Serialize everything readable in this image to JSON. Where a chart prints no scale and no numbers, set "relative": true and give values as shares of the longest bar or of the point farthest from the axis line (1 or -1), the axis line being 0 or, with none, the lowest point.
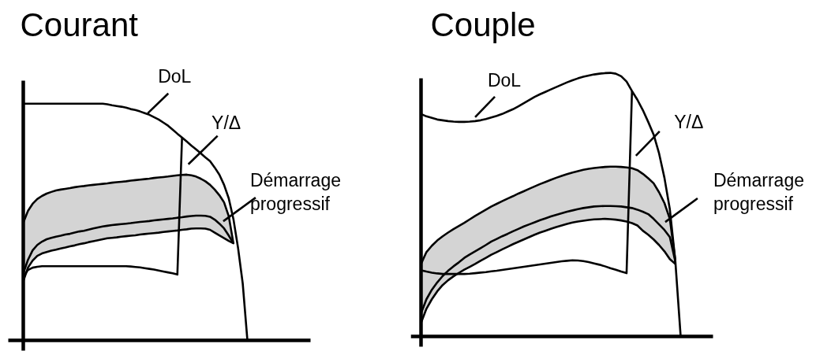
{
  "chart_data": [
    {
      "type": "line",
      "title": "Courant",
      "relative": true,
      "line_style": "solid",
      "categories": [
        null,
        null,
        null,
        null,
        null,
        null,
        null,
        null,
        null,
        null,
        null,
        null,
        null,
        null,
        null,
        null,
        null,
        null,
        null,
        null,
        null,
        null,
        null,
        null,
        null,
        null,
        null,
        null,
        null,
        null,
        null,
        null,
        null,
        null,
        null,
        null,
        null,
        null,
        null,
        null,
        null,
        null,
        null,
        null,
        null,
        null,
        null,
        null,
        null
      ],
      "series": [
        {
          "name": "DoL",
          "color": "#000000",
          "values": [
            1.0,
            1.0,
            1.0,
            1.0,
            1.0,
            1.0,
            1.0,
            1.0,
            1.0,
            1.0,
            1.0,
            1.0,
            1.0,
            1.0,
            1.0,
            1.0,
            1.0,
            1.0,
            0.997,
            0.993,
            0.99,
            0.987,
            0.983,
            0.977,
            0.973,
            0.967,
            0.96,
            0.953,
            0.943,
            0.933,
            0.92,
            0.907,
            0.89,
            0.873,
            0.857,
            0.84,
            0.823,
            0.807,
            0.79,
            0.773,
            0.757,
            0.73,
            0.7,
            0.657,
            0.6,
            0.513,
            0.39,
            0.24,
            0
          ]
        },
        {
          "name": "Y/Δ",
          "color": "#000000",
          "values": [
            0.267,
            0.297,
            0.307,
            0.311,
            0.313,
            0.313,
            0.313,
            0.313,
            0.313,
            0.313,
            0.313,
            0.313,
            0.313,
            0.313,
            0.313,
            0.313,
            0.313,
            0.313,
            0.313,
            0.313,
            0.313,
            0.313,
            0.313,
            0.312,
            0.31,
            0.308,
            0.305,
            0.302,
            0.299,
            0.295,
            0.291,
            0.287,
            0.283,
            0.278,
            0.857,
            null,
            null,
            null,
            null,
            null,
            null,
            null,
            null,
            null,
            null,
            null,
            null,
            null,
            null
          ]
        },
        {
          "name": "Démarrage progressif",
          "color": "#000000",
          "values": [
            0.283,
            0.34,
            0.38,
            0.403,
            0.417,
            0.427,
            0.433,
            0.438,
            0.442,
            0.447,
            0.45,
            0.455,
            0.46,
            0.463,
            0.468,
            0.473,
            0.477,
            0.481,
            0.484,
            0.487,
            0.489,
            0.491,
            0.493,
            0.495,
            0.498,
            0.5,
            0.502,
            0.504,
            0.507,
            0.509,
            0.511,
            0.513,
            0.515,
            0.518,
            0.52,
            0.523,
            0.525,
            0.527,
            0.527,
            0.526,
            0.522,
            0.51,
            0.493,
            0.473,
            0.443,
            0.41,
            null,
            null,
            null
          ],
          "lower": [
            0.25,
            0.307,
            0.337,
            0.357,
            0.367,
            0.373,
            0.379,
            0.383,
            0.388,
            0.392,
            0.397,
            0.401,
            0.406,
            0.41,
            0.415,
            0.419,
            0.423,
            0.427,
            0.431,
            0.433,
            0.435,
            0.438,
            0.44,
            0.442,
            0.444,
            0.447,
            0.449,
            0.451,
            0.453,
            0.455,
            0.458,
            0.46,
            0.462,
            0.464,
            0.467,
            0.469,
            0.472,
            0.473,
            0.473,
            0.472,
            0.467,
            0.455,
            0.443,
            0.432,
            0.42,
            0.41,
            null,
            null,
            null
          ],
          "upper": [
            0.497,
            0.547,
            0.577,
            0.597,
            0.61,
            0.62,
            0.627,
            0.633,
            0.637,
            0.64,
            0.643,
            0.647,
            0.65,
            0.652,
            0.655,
            0.657,
            0.659,
            0.661,
            0.663,
            0.666,
            0.668,
            0.67,
            0.672,
            0.675,
            0.677,
            0.679,
            0.681,
            0.683,
            0.686,
            0.688,
            0.69,
            0.692,
            0.695,
            0.697,
            0.699,
            0.7,
            0.697,
            0.692,
            0.683,
            0.672,
            0.657,
            0.637,
            0.613,
            0.583,
            0.525,
            0.41,
            null,
            null,
            null
          ]
        }
      ]
    },
    {
      "type": "line",
      "title": "Couple",
      "relative": true,
      "line_style": "solid",
      "categories": [
        null,
        null,
        null,
        null,
        null,
        null,
        null,
        null,
        null,
        null,
        null,
        null,
        null,
        null,
        null,
        null,
        null,
        null,
        null,
        null,
        null,
        null,
        null,
        null,
        null,
        null,
        null,
        null,
        null,
        null,
        null,
        null,
        null,
        null,
        null,
        null,
        null,
        null,
        null,
        null,
        null,
        null,
        null,
        null,
        null,
        null,
        null,
        null,
        null
      ],
      "series": [
        {
          "name": "DoL",
          "color": "#000000",
          "values": [
            0.844,
            0.835,
            0.829,
            0.823,
            0.82,
            0.817,
            0.815,
            0.814,
            0.814,
            0.815,
            0.817,
            0.82,
            0.825,
            0.831,
            0.837,
            0.844,
            0.853,
            0.862,
            0.873,
            0.885,
            0.897,
            0.909,
            0.919,
            0.928,
            0.937,
            0.946,
            0.955,
            0.964,
            0.972,
            0.979,
            0.985,
            0.99,
            0.994,
            0.997,
            0.999,
            1.0,
            0.997,
            0.987,
            0.967,
            0.931,
            0.898,
            0.859,
            0.814,
            0.766,
            0.695,
            0.602,
            0.482,
            0.29,
            0
          ]
        },
        {
          "name": "Y/Δ",
          "color": "#000000",
          "values": [
            0.251,
            0.246,
            0.242,
            0.239,
            0.237,
            0.237,
            0.237,
            0.237,
            0.237,
            0.238,
            0.24,
            0.242,
            0.244,
            0.247,
            0.249,
            0.252,
            0.255,
            0.258,
            0.261,
            0.264,
            0.267,
            0.27,
            0.273,
            0.276,
            0.279,
            0.282,
            0.285,
            0.287,
            0.289,
            0.288,
            0.286,
            0.282,
            0.277,
            0.272,
            0.266,
            0.259,
            0.253,
            0.246,
            0.24,
            0.931,
            null,
            null,
            null,
            null,
            null,
            null,
            null,
            null,
            null
          ]
        },
        {
          "name": "Démarrage progressif",
          "color": "#000000",
          "values": [
            0.087,
            0.141,
            0.177,
            0.205,
            0.229,
            0.249,
            0.266,
            0.281,
            0.298,
            0.311,
            0.323,
            0.335,
            0.347,
            0.36,
            0.37,
            0.38,
            0.389,
            0.399,
            0.408,
            0.417,
            0.425,
            0.433,
            0.441,
            0.448,
            0.455,
            0.461,
            0.467,
            0.473,
            0.478,
            0.483,
            0.487,
            0.49,
            0.493,
            0.494,
            0.495,
            0.495,
            0.494,
            0.493,
            0.49,
            0.487,
            0.481,
            0.473,
            0.464,
            0.446,
            0.425,
            0.404,
            0.377,
            0.285,
            null
          ],
          "lower": [
            0.051,
            0.105,
            0.141,
            0.171,
            0.195,
            0.213,
            0.228,
            0.241,
            0.253,
            0.264,
            0.275,
            0.287,
            0.298,
            0.31,
            0.32,
            0.33,
            0.34,
            0.35,
            0.359,
            0.368,
            0.377,
            0.386,
            0.394,
            0.401,
            0.408,
            0.415,
            0.421,
            0.427,
            0.432,
            0.436,
            0.439,
            0.442,
            0.444,
            0.445,
            0.446,
            0.445,
            0.443,
            0.44,
            0.436,
            0.43,
            0.421,
            0.401,
            0.386,
            0.368,
            0.347,
            0.323,
            0.293,
            0.275,
            null
          ],
          "upper": [
            0.275,
            0.32,
            0.344,
            0.364,
            0.38,
            0.394,
            0.407,
            0.419,
            0.431,
            0.444,
            0.457,
            0.469,
            0.481,
            0.493,
            0.503,
            0.513,
            0.523,
            0.532,
            0.542,
            0.551,
            0.56,
            0.569,
            0.578,
            0.586,
            0.594,
            0.602,
            0.609,
            0.616,
            0.622,
            0.627,
            0.632,
            0.636,
            0.639,
            0.641,
            0.643,
            0.644,
            0.644,
            0.643,
            0.641,
            0.638,
            0.631,
            0.617,
            0.6,
            0.581,
            0.547,
            0.506,
            0.446,
            0.29,
            null
          ]
        }
      ]
    }
  ]
}
